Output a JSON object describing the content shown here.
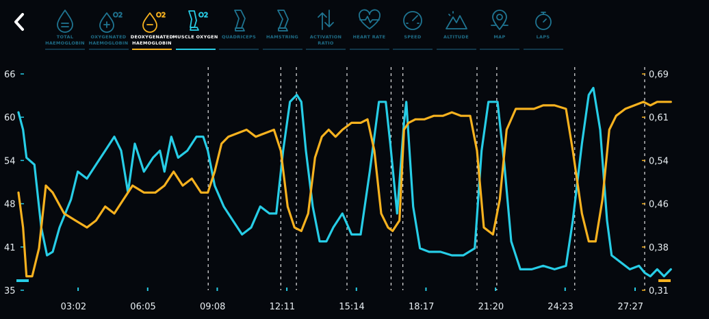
{
  "tabs": [
    {
      "label": "TOTAL HAEMOGLOBIN",
      "icon": "drop-equals-icon",
      "state": "inactive"
    },
    {
      "label": "OXYGENATED HAEMOGLOBIN",
      "icon": "drop-plus-o2-icon",
      "state": "inactive"
    },
    {
      "label": "DEOXYGENATED HAEMOGLOBIN",
      "icon": "drop-minus-o2-icon",
      "state": "orange"
    },
    {
      "label": "MUSCLE OXYGEN",
      "icon": "leg-o2-icon",
      "state": "cyan"
    },
    {
      "label": "QUADRICEPS",
      "icon": "quadriceps-icon",
      "state": "inactive"
    },
    {
      "label": "HAMSTRING",
      "icon": "hamstring-icon",
      "state": "inactive"
    },
    {
      "label": "ACTIVATION RATIO",
      "icon": "arrows-up-down-icon",
      "state": "inactive"
    },
    {
      "label": "HEART RATE",
      "icon": "heart-pulse-icon",
      "state": "inactive"
    },
    {
      "label": "SPEED",
      "icon": "speedometer-icon",
      "state": "inactive"
    },
    {
      "label": "ALTITUDE",
      "icon": "mountain-icon",
      "state": "inactive"
    },
    {
      "label": "MAP",
      "icon": "map-pin-icon",
      "state": "inactive"
    },
    {
      "label": "LAPS",
      "icon": "stopwatch-icon",
      "state": "inactive"
    }
  ],
  "colors": {
    "orange": "#f7b21f",
    "cyan": "#27cde6",
    "background": "#05080d",
    "inactive": "#1f7592"
  },
  "chart_data": {
    "type": "line",
    "x_unit": "mm:ss",
    "x_range": [
      "00:00",
      "27:27"
    ],
    "x_ticks": [
      "03:02",
      "06:05",
      "09:08",
      "12:11",
      "15:14",
      "18:17",
      "21:20",
      "24:23",
      "27:27"
    ],
    "y_left_ticks": [
      "35",
      "41",
      "48",
      "54",
      "60",
      "66"
    ],
    "y_left_range": [
      35,
      66
    ],
    "y_right_ticks": [
      "0,31",
      "0,38",
      "0,46",
      "0,54",
      "0,61",
      "0,69"
    ],
    "y_right_range": [
      0.31,
      0.69
    ],
    "lap_markers": [
      "08:19",
      "11:30",
      "12:11",
      "14:24",
      "16:20",
      "16:51",
      "20:06",
      "20:58",
      "24:23",
      "27:27"
    ],
    "series": [
      {
        "color": "#27cde6",
        "axis": "left",
        "points": [
          [
            0,
            60.5
          ],
          [
            0.2,
            58
          ],
          [
            0.35,
            54
          ],
          [
            0.7,
            53
          ],
          [
            1.0,
            44
          ],
          [
            1.25,
            40
          ],
          [
            1.5,
            40.5
          ],
          [
            1.8,
            44
          ],
          [
            2.3,
            48
          ],
          [
            2.6,
            52
          ],
          [
            3.0,
            51
          ],
          [
            3.4,
            53
          ],
          [
            3.8,
            55
          ],
          [
            4.2,
            57
          ],
          [
            4.5,
            55
          ],
          [
            4.8,
            49
          ],
          [
            5.1,
            56
          ],
          [
            5.5,
            52
          ],
          [
            5.9,
            54
          ],
          [
            6.2,
            55
          ],
          [
            6.4,
            52
          ],
          [
            6.7,
            57
          ],
          [
            7.0,
            54
          ],
          [
            7.4,
            55
          ],
          [
            7.8,
            57
          ],
          [
            8.1,
            57
          ],
          [
            8.3,
            55
          ],
          [
            8.6,
            50
          ],
          [
            9.0,
            47
          ],
          [
            9.4,
            45
          ],
          [
            9.8,
            43
          ],
          [
            10.2,
            44
          ],
          [
            10.6,
            47
          ],
          [
            11.0,
            46
          ],
          [
            11.3,
            46
          ],
          [
            11.6,
            55
          ],
          [
            11.9,
            62
          ],
          [
            12.2,
            63
          ],
          [
            12.4,
            62
          ],
          [
            12.6,
            55
          ],
          [
            12.9,
            47
          ],
          [
            13.2,
            42
          ],
          [
            13.5,
            42
          ],
          [
            13.8,
            44
          ],
          [
            14.2,
            46
          ],
          [
            14.6,
            43
          ],
          [
            15.0,
            43
          ],
          [
            15.4,
            52
          ],
          [
            15.8,
            62
          ],
          [
            16.1,
            62
          ],
          [
            16.3,
            56
          ],
          [
            16.6,
            46
          ],
          [
            16.9,
            59
          ],
          [
            17.0,
            62
          ],
          [
            17.3,
            47
          ],
          [
            17.6,
            41
          ],
          [
            18.0,
            40.5
          ],
          [
            18.5,
            40.5
          ],
          [
            19.0,
            40
          ],
          [
            19.5,
            40
          ],
          [
            20.0,
            41
          ],
          [
            20.3,
            55
          ],
          [
            20.6,
            62
          ],
          [
            21.0,
            62
          ],
          [
            21.3,
            53
          ],
          [
            21.6,
            42
          ],
          [
            22.0,
            38
          ],
          [
            22.5,
            38
          ],
          [
            23.0,
            38.5
          ],
          [
            23.5,
            38
          ],
          [
            24.0,
            38.5
          ],
          [
            24.3,
            45
          ],
          [
            24.7,
            56
          ],
          [
            25.0,
            63
          ],
          [
            25.2,
            64
          ],
          [
            25.5,
            58
          ],
          [
            25.8,
            45
          ],
          [
            26.0,
            40
          ],
          [
            26.4,
            39
          ],
          [
            26.8,
            38
          ],
          [
            27.2,
            38.5
          ],
          [
            27.45,
            37.5
          ],
          [
            27.7,
            37
          ],
          [
            28.0,
            38
          ],
          [
            28.3,
            37
          ],
          [
            28.6,
            38
          ]
        ]
      },
      {
        "color": "#f7b21f",
        "axis": "left",
        "points": [
          [
            0,
            49
          ],
          [
            0.2,
            44
          ],
          [
            0.35,
            37
          ],
          [
            0.6,
            37
          ],
          [
            0.9,
            41
          ],
          [
            1.2,
            50
          ],
          [
            1.5,
            49
          ],
          [
            2.0,
            46
          ],
          [
            2.5,
            45
          ],
          [
            3.0,
            44
          ],
          [
            3.4,
            45
          ],
          [
            3.8,
            47
          ],
          [
            4.2,
            46
          ],
          [
            4.6,
            48
          ],
          [
            5.0,
            50
          ],
          [
            5.5,
            49
          ],
          [
            6.0,
            49
          ],
          [
            6.4,
            50
          ],
          [
            6.8,
            52
          ],
          [
            7.2,
            50
          ],
          [
            7.6,
            51
          ],
          [
            8.0,
            49
          ],
          [
            8.3,
            49
          ],
          [
            8.6,
            52
          ],
          [
            8.9,
            56
          ],
          [
            9.2,
            57
          ],
          [
            9.6,
            57.5
          ],
          [
            10.0,
            58
          ],
          [
            10.4,
            57
          ],
          [
            10.8,
            57.5
          ],
          [
            11.2,
            58
          ],
          [
            11.5,
            55
          ],
          [
            11.8,
            47
          ],
          [
            12.1,
            44
          ],
          [
            12.4,
            43.5
          ],
          [
            12.7,
            46
          ],
          [
            13.0,
            54
          ],
          [
            13.3,
            57
          ],
          [
            13.6,
            58
          ],
          [
            13.9,
            57
          ],
          [
            14.2,
            58
          ],
          [
            14.6,
            59
          ],
          [
            15.0,
            59
          ],
          [
            15.3,
            59.5
          ],
          [
            15.6,
            55
          ],
          [
            15.9,
            46
          ],
          [
            16.2,
            44
          ],
          [
            16.4,
            43.5
          ],
          [
            16.7,
            45
          ],
          [
            16.9,
            58
          ],
          [
            17.1,
            59
          ],
          [
            17.4,
            59.5
          ],
          [
            17.8,
            59.5
          ],
          [
            18.2,
            60
          ],
          [
            18.6,
            60
          ],
          [
            19.0,
            60.5
          ],
          [
            19.4,
            60
          ],
          [
            19.8,
            60
          ],
          [
            20.1,
            55
          ],
          [
            20.4,
            44
          ],
          [
            20.8,
            43
          ],
          [
            21.1,
            48
          ],
          [
            21.4,
            58
          ],
          [
            21.8,
            61
          ],
          [
            22.2,
            61
          ],
          [
            22.6,
            61
          ],
          [
            23.0,
            61.5
          ],
          [
            23.5,
            61.5
          ],
          [
            24.0,
            61
          ],
          [
            24.3,
            55
          ],
          [
            24.7,
            46
          ],
          [
            25.0,
            42
          ],
          [
            25.3,
            42
          ],
          [
            25.6,
            48
          ],
          [
            25.9,
            58
          ],
          [
            26.2,
            60
          ],
          [
            26.6,
            61
          ],
          [
            27.0,
            61.5
          ],
          [
            27.4,
            62
          ],
          [
            27.7,
            61.5
          ],
          [
            28.0,
            62
          ],
          [
            28.3,
            62
          ],
          [
            28.6,
            62
          ]
        ]
      }
    ]
  }
}
